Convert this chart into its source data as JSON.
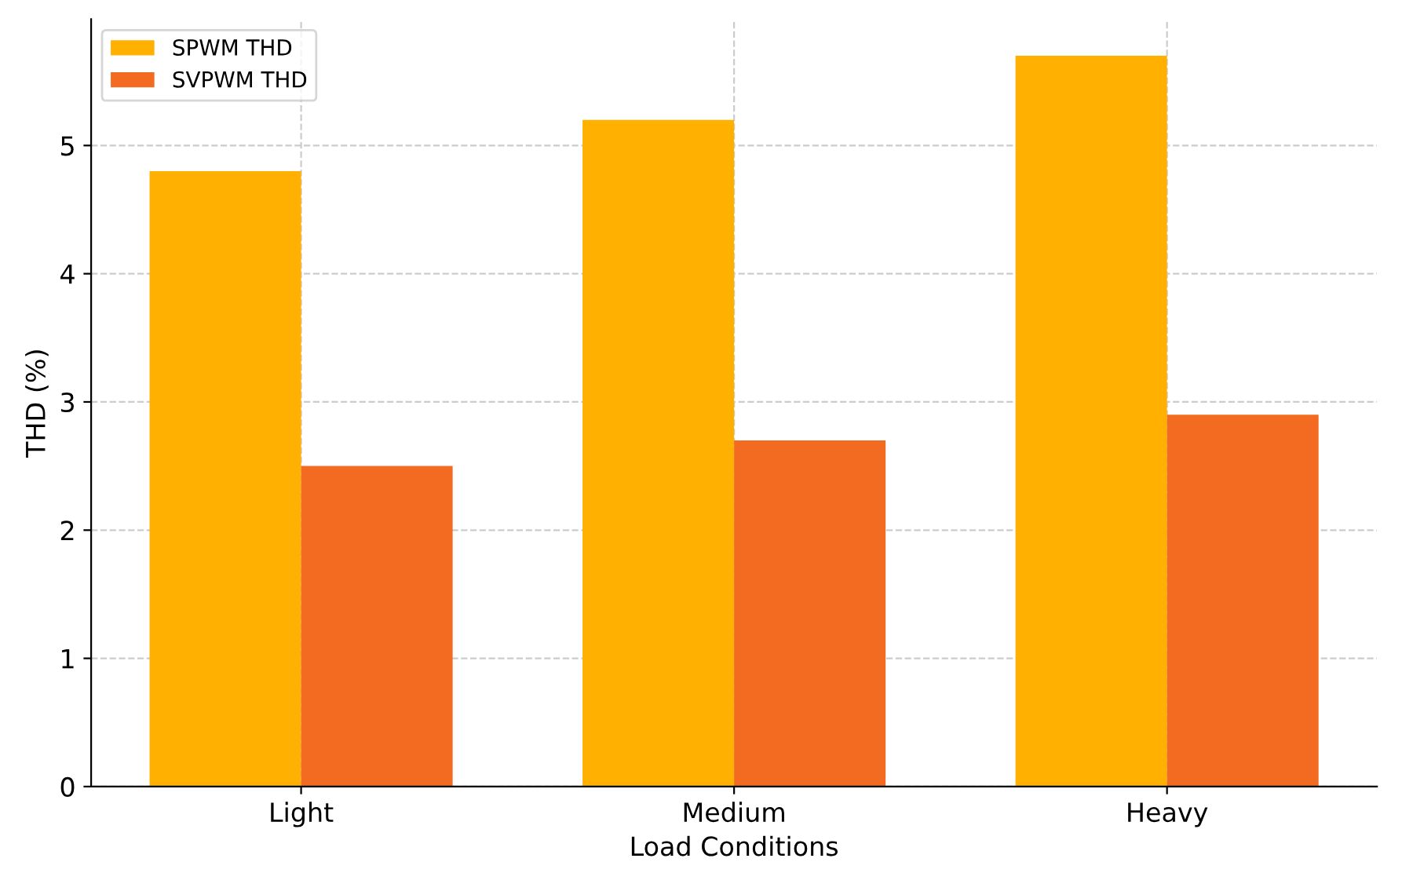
{
  "chart_data": {
    "type": "bar",
    "xlabel": "Load Conditions",
    "ylabel": "THD (%)",
    "categories": [
      "Light",
      "Medium",
      "Heavy"
    ],
    "series": [
      {
        "name": "SPWM THD",
        "color": "#ffb000",
        "values": [
          4.8,
          5.2,
          5.7
        ]
      },
      {
        "name": "SVPWM THD",
        "color": "#f26b21",
        "values": [
          2.5,
          2.7,
          2.9
        ]
      }
    ],
    "ylim": [
      0,
      5.985
    ],
    "yticks": [
      0,
      1,
      2,
      3,
      4,
      5
    ],
    "grid": true,
    "legend": "top left"
  }
}
